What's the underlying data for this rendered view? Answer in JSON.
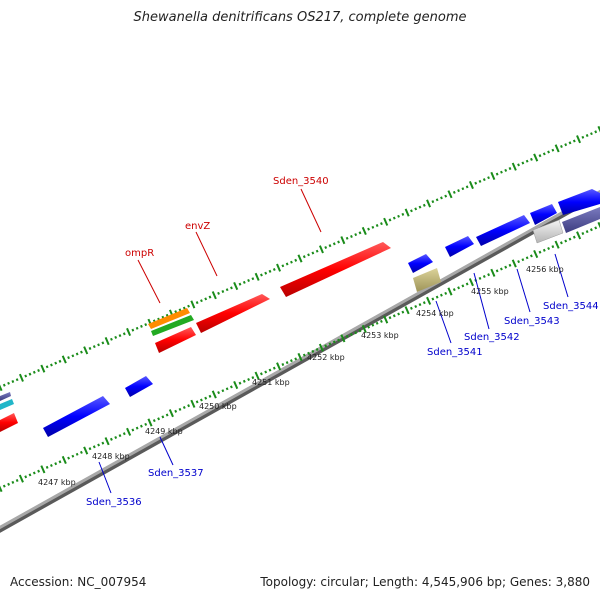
{
  "title": "Shewanella denitrificans OS217, complete genome",
  "footer": {
    "accession": "Accession: NC_007954",
    "summary": "Topology: circular; Length: 4,545,906 bp; Genes: 3,880"
  },
  "colors": {
    "forward_cds": "#ff0000",
    "reverse_cds": "#0000ff",
    "backbone": "#8c8c8c",
    "ticks": "#1a8c1a",
    "label_forward": "#cc0000",
    "label_reverse": "#0000cc"
  },
  "scale_labels": [
    "4247 kbp",
    "4248 kbp",
    "4249 kbp",
    "4250 kbp",
    "4251 kbp",
    "4252 kbp",
    "4253 kbp",
    "4254 kbp",
    "4255 kbp",
    "4256 kbp"
  ],
  "gene_labels": [
    "ompR",
    "envZ",
    "Sden_3540",
    "Sden_3536",
    "Sden_3537",
    "Sden_3541",
    "Sden_3542",
    "Sden_3543",
    "Sden_3544"
  ]
}
